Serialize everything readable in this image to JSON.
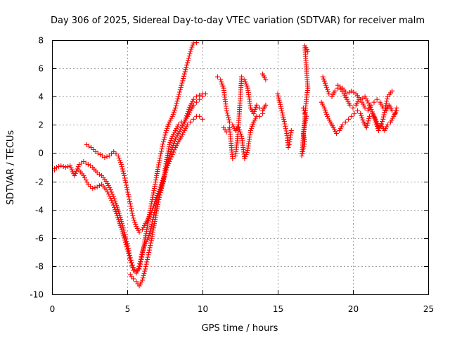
{
  "chart_data": {
    "type": "scatter",
    "title": "Day 306 of 2025, Sidereal Day-to-day VTEC variation (SDTVAR) for receiver malm",
    "xlabel": "GPS time / hours",
    "ylabel": "SDTVAR / TECUs",
    "xlim": [
      0,
      25
    ],
    "ylim": [
      -10,
      8
    ],
    "xticks": [
      0,
      5,
      10,
      15,
      20,
      25
    ],
    "yticks": [
      -10,
      -8,
      -6,
      -4,
      -2,
      0,
      2,
      4,
      6,
      8
    ],
    "xtick_labels": [
      "0",
      "5",
      "10",
      "15",
      "20",
      "25"
    ],
    "ytick_labels": [
      "-10",
      "-8",
      "-6",
      "-4",
      "-2",
      "0",
      "2",
      "4",
      "6",
      "8"
    ],
    "grid": true,
    "legend": "none",
    "marker": "+",
    "color": "#ff0000",
    "series": [
      {
        "name": "track-1",
        "points": [
          [
            0.0,
            -1.2
          ],
          [
            0.3,
            -1.0
          ],
          [
            0.6,
            -0.9
          ],
          [
            0.9,
            -1.0
          ],
          [
            1.2,
            -0.9
          ],
          [
            1.5,
            -1.6
          ],
          [
            1.8,
            -0.8
          ],
          [
            2.1,
            -0.6
          ],
          [
            2.4,
            -0.8
          ],
          [
            2.7,
            -1.0
          ],
          [
            3.0,
            -1.4
          ],
          [
            3.3,
            -1.6
          ],
          [
            3.6,
            -2.0
          ],
          [
            3.9,
            -2.6
          ],
          [
            4.2,
            -3.4
          ],
          [
            4.5,
            -4.4
          ],
          [
            4.8,
            -5.6
          ],
          [
            5.0,
            -6.4
          ],
          [
            5.2,
            -7.4
          ],
          [
            5.4,
            -8.1
          ],
          [
            5.6,
            -8.4
          ],
          [
            5.8,
            -8.2
          ],
          [
            6.0,
            -7.2
          ],
          [
            6.2,
            -6.0
          ],
          [
            6.4,
            -4.8
          ],
          [
            6.6,
            -3.6
          ],
          [
            6.8,
            -2.5
          ],
          [
            7.0,
            -1.3
          ],
          [
            7.2,
            -0.2
          ],
          [
            7.4,
            0.8
          ],
          [
            7.6,
            1.6
          ],
          [
            7.8,
            2.2
          ],
          [
            8.0,
            2.6
          ],
          [
            8.2,
            3.2
          ],
          [
            8.4,
            4.0
          ],
          [
            8.6,
            4.8
          ],
          [
            8.8,
            5.6
          ],
          [
            9.0,
            6.4
          ],
          [
            9.2,
            7.2
          ],
          [
            9.4,
            7.8
          ],
          [
            9.6,
            8.0
          ]
        ]
      },
      {
        "name": "track-2",
        "points": [
          [
            1.8,
            -1.2
          ],
          [
            2.1,
            -1.6
          ],
          [
            2.4,
            -2.2
          ],
          [
            2.7,
            -2.5
          ],
          [
            3.0,
            -2.4
          ],
          [
            3.3,
            -2.2
          ],
          [
            3.6,
            -2.6
          ],
          [
            3.9,
            -3.2
          ],
          [
            4.2,
            -4.0
          ],
          [
            4.5,
            -5.0
          ],
          [
            4.8,
            -6.0
          ],
          [
            5.0,
            -6.8
          ],
          [
            5.2,
            -7.6
          ],
          [
            5.4,
            -8.3
          ],
          [
            5.6,
            -8.5
          ],
          [
            5.8,
            -8.0
          ],
          [
            6.0,
            -7.0
          ],
          [
            6.2,
            -6.4
          ],
          [
            6.4,
            -6.0
          ],
          [
            6.6,
            -5.2
          ],
          [
            6.8,
            -4.2
          ],
          [
            7.0,
            -3.2
          ],
          [
            7.2,
            -2.6
          ],
          [
            7.4,
            -2.0
          ],
          [
            7.6,
            -1.0
          ],
          [
            7.8,
            -0.2
          ],
          [
            8.0,
            0.4
          ],
          [
            8.2,
            1.0
          ],
          [
            8.4,
            1.4
          ],
          [
            8.6,
            1.8
          ],
          [
            8.8,
            2.2
          ],
          [
            9.0,
            2.6
          ],
          [
            9.2,
            3.0
          ],
          [
            9.4,
            3.4
          ],
          [
            9.6,
            3.6
          ],
          [
            9.8,
            3.8
          ],
          [
            10.0,
            4.0
          ],
          [
            10.2,
            4.2
          ]
        ]
      },
      {
        "name": "track-3",
        "points": [
          [
            2.3,
            0.6
          ],
          [
            2.6,
            0.4
          ],
          [
            2.9,
            0.1
          ],
          [
            3.2,
            -0.1
          ],
          [
            3.5,
            -0.3
          ],
          [
            3.8,
            -0.2
          ],
          [
            4.1,
            0.1
          ],
          [
            4.4,
            -0.2
          ],
          [
            4.6,
            -0.8
          ],
          [
            4.8,
            -1.6
          ],
          [
            5.0,
            -2.6
          ],
          [
            5.2,
            -3.6
          ],
          [
            5.4,
            -4.6
          ],
          [
            5.6,
            -5.2
          ],
          [
            5.8,
            -5.6
          ],
          [
            6.0,
            -5.4
          ],
          [
            6.2,
            -5.0
          ],
          [
            6.4,
            -4.6
          ],
          [
            6.6,
            -4.2
          ],
          [
            6.8,
            -3.6
          ],
          [
            7.0,
            -3.0
          ],
          [
            7.2,
            -2.4
          ],
          [
            7.4,
            -1.8
          ],
          [
            7.6,
            -1.2
          ],
          [
            7.8,
            -0.6
          ],
          [
            8.0,
            -0.1
          ],
          [
            8.2,
            0.4
          ],
          [
            8.4,
            0.8
          ],
          [
            8.6,
            1.2
          ],
          [
            8.8,
            1.6
          ],
          [
            9.0,
            2.0
          ],
          [
            9.2,
            2.2
          ],
          [
            9.4,
            2.4
          ],
          [
            9.6,
            2.6
          ],
          [
            9.8,
            2.6
          ],
          [
            10.0,
            2.4
          ]
        ]
      },
      {
        "name": "track-4",
        "points": [
          [
            5.2,
            -8.6
          ],
          [
            5.4,
            -8.9
          ],
          [
            5.6,
            -9.1
          ],
          [
            5.8,
            -9.4
          ],
          [
            6.0,
            -9.0
          ],
          [
            6.2,
            -8.2
          ],
          [
            6.4,
            -7.2
          ],
          [
            6.6,
            -6.2
          ],
          [
            6.8,
            -5.0
          ],
          [
            7.0,
            -3.8
          ],
          [
            7.2,
            -2.8
          ],
          [
            7.4,
            -1.9
          ],
          [
            7.6,
            -0.6
          ],
          [
            7.8,
            0.6
          ],
          [
            8.0,
            1.2
          ],
          [
            8.2,
            1.6
          ],
          [
            8.4,
            2.0
          ],
          [
            8.6,
            2.2
          ],
          [
            8.8,
            2.2
          ],
          [
            9.0,
            2.8
          ],
          [
            9.2,
            3.4
          ],
          [
            9.4,
            3.8
          ],
          [
            9.6,
            4.0
          ],
          [
            9.8,
            4.1
          ],
          [
            10.0,
            4.2
          ]
        ]
      },
      {
        "name": "track-5",
        "points": [
          [
            11.0,
            5.4
          ],
          [
            11.2,
            5.2
          ],
          [
            11.4,
            4.6
          ],
          [
            11.6,
            3.0
          ],
          [
            11.8,
            2.2
          ],
          [
            12.0,
            2.0
          ],
          [
            12.2,
            1.6
          ],
          [
            12.4,
            2.0
          ],
          [
            12.6,
            5.4
          ],
          [
            12.8,
            5.2
          ],
          [
            13.0,
            4.6
          ],
          [
            13.2,
            3.2
          ],
          [
            13.4,
            2.8
          ],
          [
            13.6,
            3.4
          ],
          [
            13.8,
            3.2
          ],
          [
            14.0,
            3.0
          ],
          [
            14.2,
            3.4
          ]
        ]
      },
      {
        "name": "track-6",
        "points": [
          [
            11.4,
            1.8
          ],
          [
            11.6,
            1.5
          ],
          [
            11.8,
            1.8
          ],
          [
            12.0,
            -0.4
          ],
          [
            12.2,
            -0.2
          ],
          [
            12.4,
            1.8
          ],
          [
            12.6,
            1.2
          ],
          [
            12.8,
            -0.4
          ],
          [
            13.0,
            0.2
          ],
          [
            13.2,
            1.6
          ],
          [
            13.4,
            2.2
          ],
          [
            13.6,
            2.6
          ],
          [
            13.8,
            2.6
          ],
          [
            14.0,
            2.8
          ]
        ]
      },
      {
        "name": "track-7",
        "points": [
          [
            14.0,
            5.6
          ],
          [
            14.2,
            5.2
          ],
          [
            15.0,
            4.2
          ],
          [
            15.4,
            2.4
          ],
          [
            15.6,
            1.4
          ],
          [
            15.7,
            0.4
          ],
          [
            15.8,
            0.8
          ],
          [
            15.9,
            1.6
          ],
          [
            16.7,
            3.2
          ],
          [
            16.8,
            2.8
          ],
          [
            16.9,
            2.6
          ],
          [
            16.7,
            1.4
          ],
          [
            16.8,
            0.8
          ],
          [
            16.6,
            -0.2
          ],
          [
            16.9,
            3.8
          ],
          [
            17.0,
            4.6
          ],
          [
            16.8,
            7.6
          ],
          [
            17.0,
            7.2
          ]
        ]
      },
      {
        "name": "track-8",
        "points": [
          [
            18.0,
            5.4
          ],
          [
            18.2,
            4.8
          ],
          [
            18.4,
            4.2
          ],
          [
            18.6,
            4.0
          ],
          [
            18.8,
            4.4
          ],
          [
            19.0,
            4.6
          ],
          [
            19.2,
            4.5
          ],
          [
            19.4,
            4.2
          ],
          [
            19.6,
            3.8
          ],
          [
            19.8,
            3.4
          ],
          [
            20.0,
            3.2
          ],
          [
            20.2,
            3.4
          ],
          [
            20.4,
            3.8
          ],
          [
            20.6,
            3.6
          ],
          [
            20.8,
            3.2
          ],
          [
            21.0,
            3.0
          ],
          [
            21.2,
            3.4
          ],
          [
            21.4,
            3.6
          ],
          [
            21.6,
            3.8
          ],
          [
            21.8,
            3.6
          ],
          [
            22.0,
            3.2
          ],
          [
            22.2,
            3.0
          ],
          [
            22.4,
            3.4
          ],
          [
            22.6,
            3.0
          ],
          [
            22.8,
            2.8
          ],
          [
            22.9,
            3.2
          ]
        ]
      },
      {
        "name": "track-9",
        "points": [
          [
            17.9,
            3.6
          ],
          [
            18.1,
            3.2
          ],
          [
            18.3,
            2.6
          ],
          [
            18.5,
            2.2
          ],
          [
            18.7,
            1.8
          ],
          [
            18.9,
            1.4
          ],
          [
            19.1,
            1.6
          ],
          [
            19.3,
            2.0
          ],
          [
            19.5,
            2.2
          ],
          [
            19.7,
            2.4
          ],
          [
            19.9,
            2.6
          ],
          [
            20.1,
            2.8
          ],
          [
            20.3,
            3.0
          ],
          [
            20.5,
            2.8
          ],
          [
            20.7,
            2.2
          ],
          [
            20.9,
            1.8
          ],
          [
            21.1,
            2.6
          ],
          [
            21.3,
            2.8
          ],
          [
            21.5,
            2.4
          ],
          [
            21.7,
            1.8
          ],
          [
            21.9,
            2.0
          ],
          [
            22.1,
            1.6
          ],
          [
            22.3,
            2.0
          ],
          [
            22.5,
            2.2
          ],
          [
            22.7,
            2.6
          ],
          [
            22.9,
            3.0
          ]
        ]
      },
      {
        "name": "track-10",
        "points": [
          [
            19.0,
            4.8
          ],
          [
            19.3,
            4.6
          ],
          [
            19.6,
            4.2
          ],
          [
            19.9,
            4.4
          ],
          [
            20.2,
            4.2
          ],
          [
            20.5,
            3.8
          ],
          [
            20.8,
            4.0
          ],
          [
            21.1,
            3.4
          ],
          [
            21.4,
            2.6
          ],
          [
            21.7,
            1.6
          ],
          [
            22.0,
            2.4
          ],
          [
            22.3,
            4.0
          ],
          [
            22.6,
            4.4
          ]
        ]
      }
    ]
  }
}
